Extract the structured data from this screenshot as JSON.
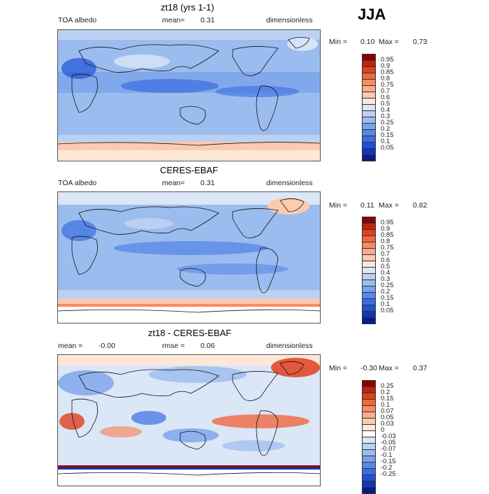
{
  "season": "JJA",
  "panels": [
    {
      "title": "zt18 (yrs 1-1)",
      "left": "TOA albedo",
      "center_label": "mean=",
      "center_value": "0.31",
      "right": "dimensionless",
      "min_label": "Min =",
      "min_value": "0.10",
      "max_label": "Max =",
      "max_value": "0.73",
      "colorbar": {
        "colors": [
          "#8b0000",
          "#c0240f",
          "#e0401e",
          "#f06840",
          "#f68c64",
          "#f9ad8c",
          "#fbcab0",
          "#fde8d8",
          "#dbe6f7",
          "#bcd1f2",
          "#9bbcee",
          "#7aa2ea",
          "#5a88e6",
          "#3a6ee1",
          "#1f52d6",
          "#1136b5",
          "#0a1a8c"
        ],
        "labels": [
          "0.95",
          "0.9",
          "0.85",
          "0.8",
          "0.75",
          "0.7",
          "0.6",
          "0.5",
          "0.4",
          "0.3",
          "0.25",
          "0.2",
          "0.15",
          "0.1",
          "0.05"
        ]
      }
    },
    {
      "title": "CERES-EBAF",
      "left": "TOA albedo",
      "center_label": "mean=",
      "center_value": "0.31",
      "right": "dimensionless",
      "min_label": "Min =",
      "min_value": "0.11",
      "max_label": "Max =",
      "max_value": "0.82",
      "colorbar": {
        "colors": [
          "#8b0000",
          "#c0240f",
          "#e0401e",
          "#f06840",
          "#f68c64",
          "#f9ad8c",
          "#fbcab0",
          "#fde8d8",
          "#dbe6f7",
          "#bcd1f2",
          "#9bbcee",
          "#7aa2ea",
          "#5a88e6",
          "#3a6ee1",
          "#1f52d6",
          "#1136b5",
          "#0a1a8c"
        ],
        "labels": [
          "0.95",
          "0.9",
          "0.85",
          "0.8",
          "0.75",
          "0.7",
          "0.6",
          "0.5",
          "0.4",
          "0.3",
          "0.25",
          "0.2",
          "0.15",
          "0.1",
          "0.05"
        ]
      }
    },
    {
      "title": "zt18 - CERES-EBAF",
      "left": "mean =",
      "left_value": "-0.00",
      "center_label": "rmse =",
      "center_value": "0.06",
      "right": "dimensionless",
      "min_label": "Min =",
      "min_value": "-0.30",
      "max_label": "Max =",
      "max_value": "0.37",
      "colorbar": {
        "colors": [
          "#8b0000",
          "#c0240f",
          "#e0401e",
          "#f06840",
          "#f68c64",
          "#f9ad8c",
          "#fbcab0",
          "#fde8d8",
          "#ffffff",
          "#dbe6f7",
          "#bcd1f2",
          "#9bbcee",
          "#7aa2ea",
          "#5a88e6",
          "#3a6ee1",
          "#1f52d6",
          "#1136b5",
          "#0a1a8c"
        ],
        "labels": [
          "0.25",
          "0.2",
          "0.15",
          "0.1",
          "0.07",
          "0.05",
          "0.03",
          "0",
          "-0.03",
          "-0.05",
          "-0.07",
          "-0.1",
          "-0.15",
          "-0.2",
          "-0.25"
        ]
      }
    }
  ]
}
